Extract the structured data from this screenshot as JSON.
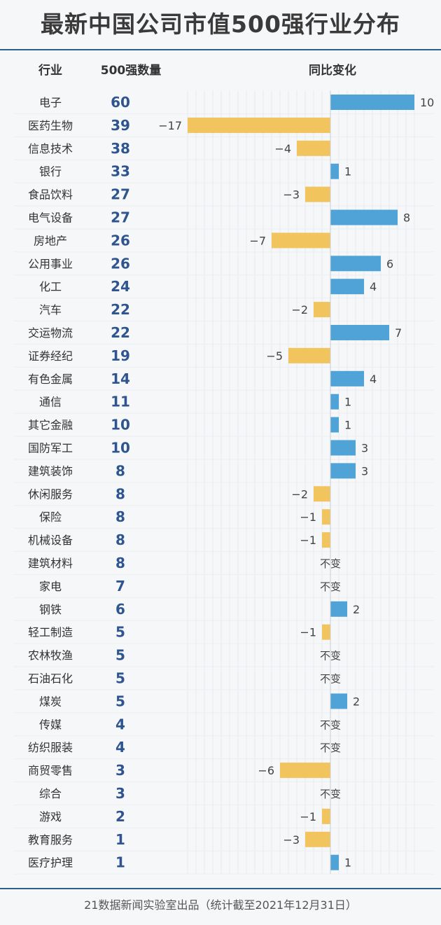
{
  "title": "最新中国公司市值500强行业分布",
  "footer": "21数据新闻实验室出品（统计截至2021年12月31日）",
  "colors": {
    "positive": "#4fa3d6",
    "negative": "#f2c45e",
    "count_text": "#2f5590",
    "label_text": "#333333",
    "rule": "#2e5f8a"
  },
  "chart_data": {
    "type": "bar",
    "headers": {
      "industry": "行业",
      "count": "500强数量",
      "change": "同比变化"
    },
    "no_change_label": "不变",
    "xlim": [
      -17,
      10
    ],
    "rows": [
      {
        "industry": "电子",
        "count": 60,
        "change": 10
      },
      {
        "industry": "医药生物",
        "count": 39,
        "change": -17
      },
      {
        "industry": "信息技术",
        "count": 38,
        "change": -4
      },
      {
        "industry": "银行",
        "count": 33,
        "change": 1
      },
      {
        "industry": "食品饮料",
        "count": 27,
        "change": -3
      },
      {
        "industry": "电气设备",
        "count": 27,
        "change": 8
      },
      {
        "industry": "房地产",
        "count": 26,
        "change": -7
      },
      {
        "industry": "公用事业",
        "count": 26,
        "change": 6
      },
      {
        "industry": "化工",
        "count": 24,
        "change": 4
      },
      {
        "industry": "汽车",
        "count": 22,
        "change": -2
      },
      {
        "industry": "交运物流",
        "count": 22,
        "change": 7
      },
      {
        "industry": "证券经纪",
        "count": 19,
        "change": -5
      },
      {
        "industry": "有色金属",
        "count": 14,
        "change": 4
      },
      {
        "industry": "通信",
        "count": 11,
        "change": 1
      },
      {
        "industry": "其它金融",
        "count": 10,
        "change": 1
      },
      {
        "industry": "国防军工",
        "count": 10,
        "change": 3
      },
      {
        "industry": "建筑装饰",
        "count": 8,
        "change": 3
      },
      {
        "industry": "休闲服务",
        "count": 8,
        "change": -2
      },
      {
        "industry": "保险",
        "count": 8,
        "change": -1
      },
      {
        "industry": "机械设备",
        "count": 8,
        "change": -1
      },
      {
        "industry": "建筑材料",
        "count": 8,
        "change": 0
      },
      {
        "industry": "家电",
        "count": 7,
        "change": 0
      },
      {
        "industry": "钢铁",
        "count": 6,
        "change": 2
      },
      {
        "industry": "轻工制造",
        "count": 5,
        "change": -1
      },
      {
        "industry": "农林牧渔",
        "count": 5,
        "change": 0
      },
      {
        "industry": "石油石化",
        "count": 5,
        "change": 0
      },
      {
        "industry": "煤炭",
        "count": 5,
        "change": 2
      },
      {
        "industry": "传媒",
        "count": 4,
        "change": 0
      },
      {
        "industry": "纺织服装",
        "count": 4,
        "change": 0
      },
      {
        "industry": "商贸零售",
        "count": 3,
        "change": -6
      },
      {
        "industry": "综合",
        "count": 3,
        "change": 0
      },
      {
        "industry": "游戏",
        "count": 2,
        "change": -1
      },
      {
        "industry": "教育服务",
        "count": 1,
        "change": -3
      },
      {
        "industry": "医疗护理",
        "count": 1,
        "change": 1
      }
    ]
  }
}
